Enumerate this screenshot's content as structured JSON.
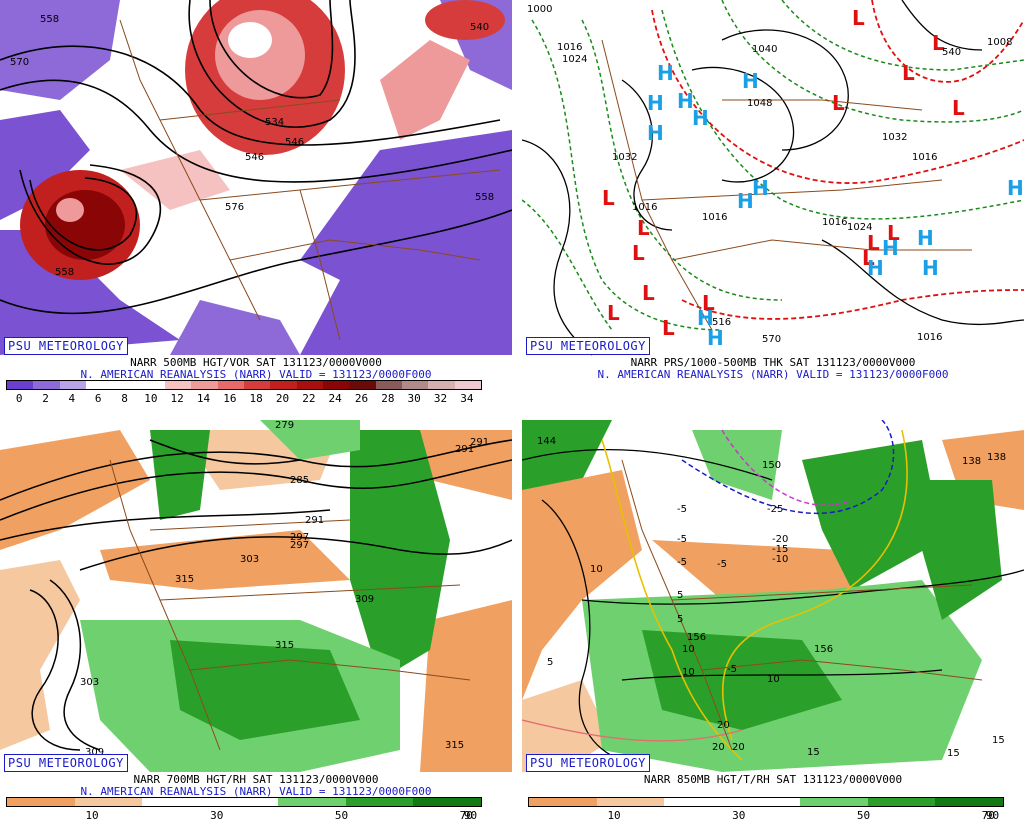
{
  "panels": [
    {
      "id": "p500",
      "caption1": "NARR 500MB HGT/VOR SAT 131123/0000V000",
      "caption2": "N. AMERICAN REANALYSIS (NARR) VALID = 131123/0000F000",
      "brand": "PSU METEOROLOGY",
      "colorbar_labels": [
        "0",
        "2",
        "4",
        "6",
        "8",
        "10",
        "12",
        "14",
        "16",
        "18",
        "20",
        "22",
        "24",
        "26",
        "28",
        "30",
        "32",
        "34"
      ],
      "colorbar_colors": [
        "#6a3fd0",
        "#8d6ad8",
        "#b7a4e6",
        "#ffffff",
        "#ffffff",
        "#ffffff",
        "#f6c1c1",
        "#ef9a9a",
        "#e66a6a",
        "#d63c3c",
        "#c21f1f",
        "#a80f0f",
        "#8a0606",
        "#6b0a0a",
        "#8a5a5a",
        "#b08a8a",
        "#d4b0b0",
        "#f0c8d0"
      ],
      "contour_labels": [
        "558",
        "546",
        "570",
        "534",
        "546",
        "558",
        "576",
        "540",
        "558"
      ]
    },
    {
      "id": "psfc",
      "caption1": "NARR PRS/1000-500MB THK SAT 131123/0000V000",
      "caption2": "N. AMERICAN REANALYSIS (NARR) VALID = 131123/0000F000",
      "brand": "PSU METEOROLOGY",
      "contour_labels": [
        "1000",
        "1016",
        "1024",
        "1040",
        "1048",
        "1032",
        "1032",
        "1016",
        "1024",
        "1008",
        "540",
        "570",
        "516",
        "1016",
        "1016",
        "1016",
        "1016"
      ]
    },
    {
      "id": "p700",
      "caption1": "NARR 700MB HGT/RH SAT 131123/0000V000",
      "caption2": "N. AMERICAN REANALYSIS (NARR) VALID = 131123/0000F000",
      "brand": "PSU METEOROLOGY",
      "colorbar_labels": [
        "10",
        "30",
        "50",
        "70",
        "90"
      ],
      "colorbar_colors": [
        "#f0a060",
        "#f5c8a0",
        "#ffffff",
        "#ffffff",
        "#6fd06f",
        "#2aa02a",
        "#137a13"
      ],
      "contour_labels": [
        "279",
        "285",
        "291",
        "297",
        "303",
        "309",
        "315",
        "303",
        "309",
        "315",
        "315",
        "291",
        "297",
        "291"
      ]
    },
    {
      "id": "p850",
      "caption1": "NARR 850MB HGT/T/RH SAT 131123/0000V000",
      "caption2": "",
      "brand": "PSU METEOROLOGY",
      "colorbar_labels": [
        "10",
        "30",
        "50",
        "70",
        "90"
      ],
      "colorbar_colors": [
        "#f0a060",
        "#f5c8a0",
        "#ffffff",
        "#ffffff",
        "#6fd06f",
        "#2aa02a",
        "#137a13"
      ],
      "contour_labels": [
        "144",
        "150",
        "156",
        "156",
        "138",
        "138",
        "-25",
        "-20",
        "-15",
        "-10",
        "-5",
        "-5",
        "-5",
        "-5",
        "5",
        "5",
        "5",
        "10",
        "10",
        "10",
        "15",
        "15",
        "15",
        "20",
        "20",
        "20",
        "-5",
        "10"
      ]
    }
  ],
  "colors": {
    "brand": "#1a1ac8",
    "low": "#e01010",
    "high": "#1aa0e6"
  },
  "surface_markers": {
    "L": "L",
    "H": "H"
  }
}
